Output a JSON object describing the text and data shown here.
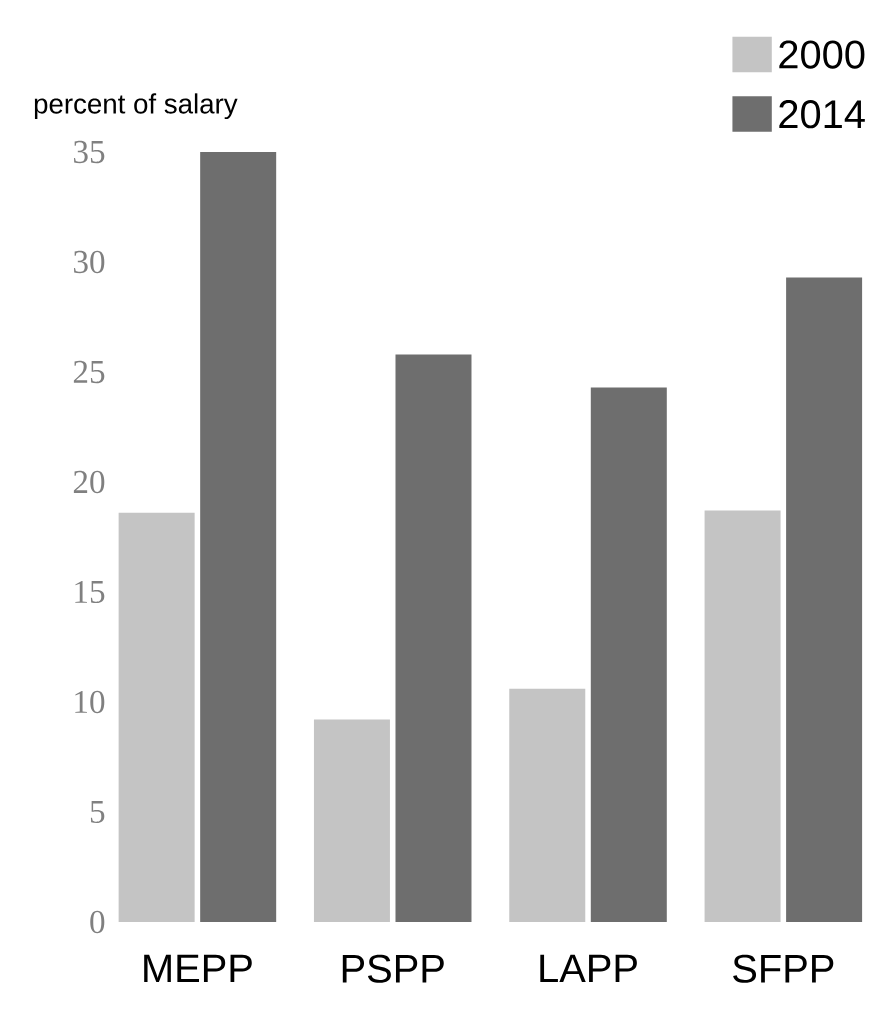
{
  "chart_data": {
    "type": "bar",
    "ylabel": "percent of salary",
    "categories": [
      "MEPP",
      "PSPP",
      "LAPP",
      "SFPP"
    ],
    "series": [
      {
        "name": "2000",
        "color": "#c4c4c4",
        "values": [
          18.6,
          9.2,
          10.6,
          18.7
        ]
      },
      {
        "name": "2014",
        "color": "#6e6e6e",
        "values": [
          35,
          25.8,
          24.3,
          29.3
        ]
      }
    ],
    "ylim": [
      0,
      35
    ],
    "yticks": [
      0,
      5,
      10,
      15,
      20,
      25,
      30,
      35
    ],
    "legend": "top right",
    "grid": false
  }
}
